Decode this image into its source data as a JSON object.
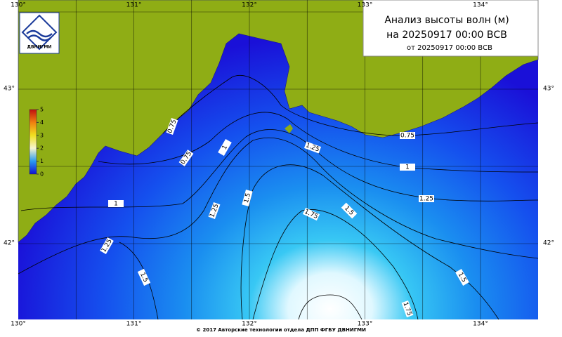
{
  "title": "Анализ высоты волн (м)",
  "analysis_time": "на 20250917 00:00 ВСВ",
  "issue_time": "от 20250917 00:00 ВСВ",
  "logo_text": "ДВНИГМИ",
  "longitude_labels": [
    "130°",
    "131°",
    "132°",
    "133°",
    "134°"
  ],
  "latitude_labels": [
    "43°",
    "42°"
  ],
  "colorbar_ticks": [
    0,
    1,
    2,
    3,
    4,
    5
  ],
  "contour_labels": [
    "0.75",
    "0.75",
    "1",
    "0.75",
    "1.25",
    "1",
    "1.25",
    "1.5",
    "1.25",
    "1",
    "1.75",
    "1.5",
    "1.25",
    "1.5",
    "1.5",
    "1.75"
  ],
  "footer": "© 2017 Авторские технологии отдела ДПП ФГБУ ДВНИГМИ"
}
